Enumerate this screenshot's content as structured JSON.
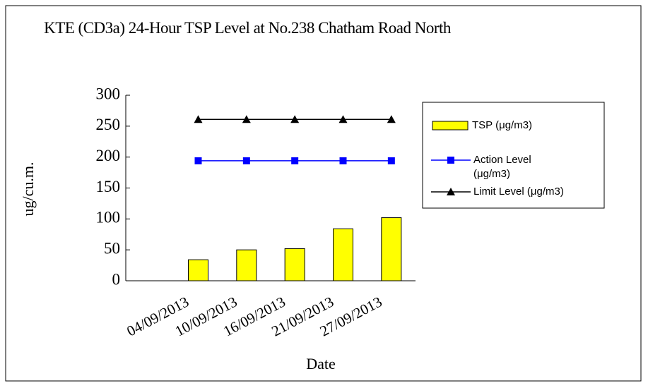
{
  "chart_data": {
    "type": "bar",
    "title": "KTE (CD3a) 24-Hour TSP Level at No.238 Chatham Road North",
    "x_label": "Date",
    "y_label": "ug/cu.m.",
    "categories": [
      null,
      "04/09/2013",
      "10/09/2013",
      "16/09/2013",
      "21/09/2013",
      "27/09/2013"
    ],
    "series": [
      {
        "name": "TSP (μg/m3)",
        "type": "bar",
        "color": "#ffff00",
        "values": [
          null,
          34,
          50,
          52,
          84,
          102
        ]
      },
      {
        "name": "Action Level (μg/m3)",
        "type": "line",
        "marker": "square",
        "color": "#0000ff",
        "values": [
          null,
          194,
          194,
          194,
          194,
          194
        ]
      },
      {
        "name": "Limit Level (μg/m3)",
        "type": "line",
        "marker": "triangle",
        "color": "#000000",
        "values": [
          null,
          261,
          261,
          261,
          261,
          261
        ]
      }
    ],
    "ylim": [
      0,
      300
    ],
    "yticks": [
      0,
      50,
      100,
      150,
      200,
      250,
      300
    ],
    "grid": false
  }
}
